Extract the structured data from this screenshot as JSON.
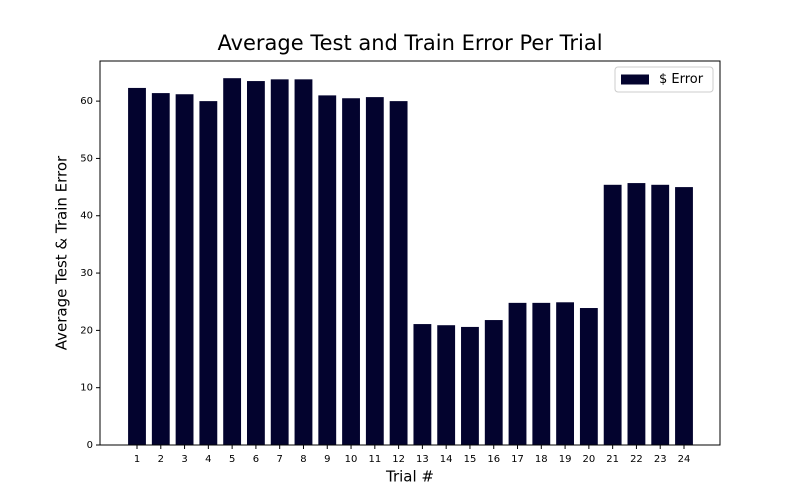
{
  "chart_data": {
    "type": "bar",
    "title": "Average Test and Train Error Per Trial",
    "x_label": "Trial #",
    "y_label": "Average Test & Train Error",
    "categories": [
      "1",
      "2",
      "3",
      "4",
      "5",
      "6",
      "7",
      "8",
      "9",
      "10",
      "11",
      "12",
      "13",
      "14",
      "15",
      "16",
      "17",
      "18",
      "19",
      "20",
      "21",
      "22",
      "23",
      "24"
    ],
    "series": [
      {
        "name": "$ Error",
        "color": "#03032e",
        "values": [
          62.3,
          61.4,
          61.2,
          60.0,
          64.0,
          63.5,
          63.8,
          63.8,
          61.0,
          60.5,
          60.7,
          60.0,
          21.1,
          20.9,
          20.6,
          21.8,
          24.8,
          24.8,
          24.9,
          23.9,
          45.4,
          45.7,
          45.4,
          45.0
        ]
      }
    ],
    "ylim": [
      0,
      67
    ],
    "yticks": [
      0,
      10,
      20,
      30,
      40,
      50,
      60
    ],
    "legend": "upper right"
  }
}
